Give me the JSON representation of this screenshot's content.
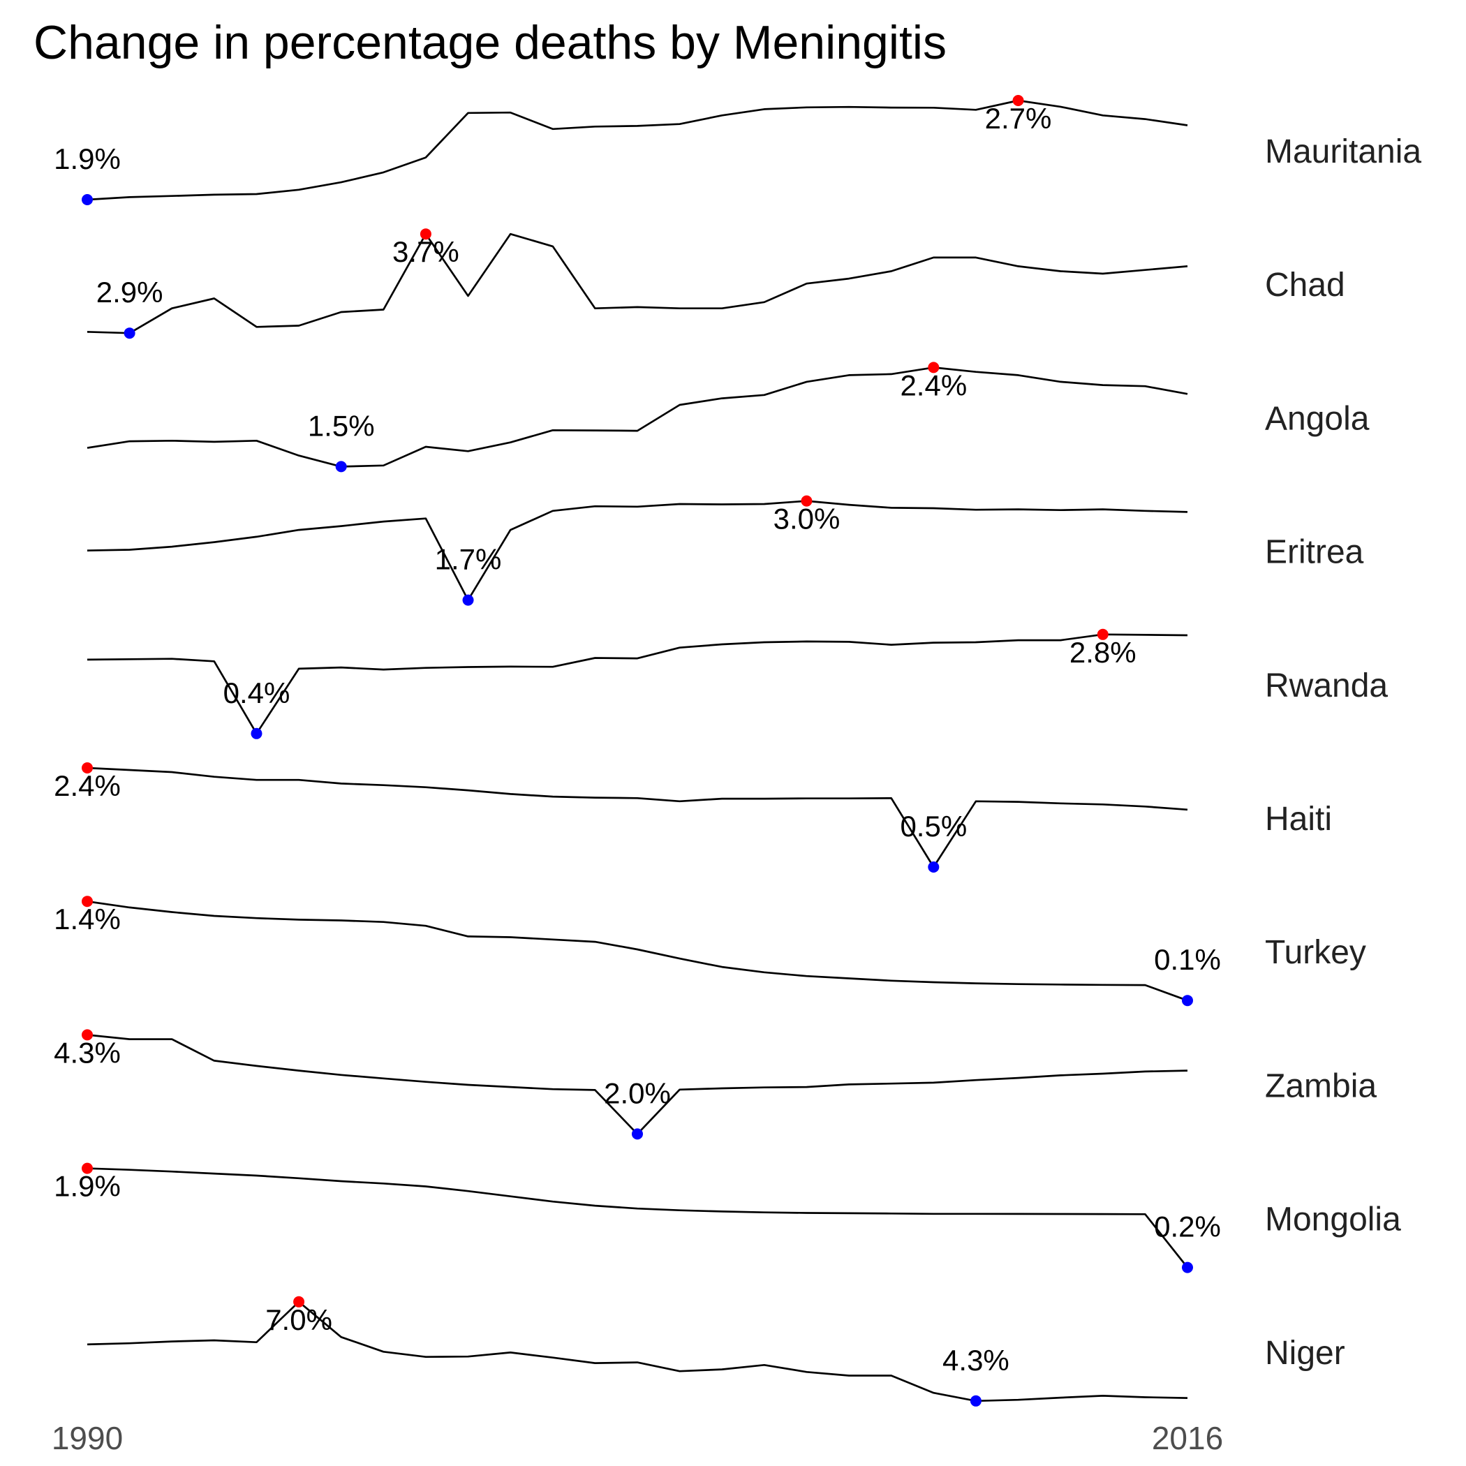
{
  "chart_data": {
    "type": "line",
    "title": "Change in percentage deaths by Meningitis",
    "x_start": 1990,
    "x_end": 2016,
    "x_labels": [
      "1990",
      "2016"
    ],
    "years": [
      1990,
      1991,
      1992,
      1993,
      1994,
      1995,
      1996,
      1997,
      1998,
      1999,
      2000,
      2001,
      2002,
      2003,
      2004,
      2005,
      2006,
      2007,
      2008,
      2009,
      2010,
      2011,
      2012,
      2013,
      2014,
      2015,
      2016
    ],
    "grid": false,
    "legend": "none",
    "max_marker_color": "#ff0000",
    "min_marker_color": "#0000ff",
    "line_color": "#000000",
    "series": [
      {
        "name": "Mauritania",
        "values": [
          1.9,
          1.92,
          1.93,
          1.94,
          1.945,
          1.98,
          2.04,
          2.12,
          2.24,
          2.6,
          2.603,
          2.47,
          2.49,
          2.495,
          2.51,
          2.58,
          2.63,
          2.645,
          2.648,
          2.643,
          2.642,
          2.625,
          2.7,
          2.65,
          2.58,
          2.55,
          2.5
        ],
        "max": {
          "index": 22,
          "label": "2.7%"
        },
        "min": {
          "index": 0,
          "label": "1.9%"
        }
      },
      {
        "name": "Chad",
        "values": [
          2.91,
          2.9,
          3.1,
          3.18,
          2.95,
          2.96,
          3.07,
          3.09,
          3.7,
          3.2,
          3.7,
          3.6,
          3.1,
          3.11,
          3.1,
          3.1,
          3.15,
          3.3,
          3.34,
          3.4,
          3.51,
          3.51,
          3.44,
          3.4,
          3.38,
          3.41,
          3.44
        ],
        "max": {
          "index": 8,
          "label": "3.7%"
        },
        "min": {
          "index": 1,
          "label": "2.9%"
        }
      },
      {
        "name": "Angola",
        "values": [
          1.67,
          1.73,
          1.735,
          1.725,
          1.735,
          1.6,
          1.5,
          1.51,
          1.68,
          1.64,
          1.72,
          1.83,
          1.828,
          1.825,
          2.06,
          2.12,
          2.15,
          2.27,
          2.33,
          2.34,
          2.4,
          2.36,
          2.33,
          2.27,
          2.24,
          2.23,
          2.16
        ],
        "max": {
          "index": 20,
          "label": "2.4%"
        },
        "min": {
          "index": 6,
          "label": "1.5%"
        }
      },
      {
        "name": "Eritrea",
        "values": [
          2.35,
          2.36,
          2.4,
          2.46,
          2.53,
          2.62,
          2.67,
          2.73,
          2.77,
          1.7,
          2.62,
          2.87,
          2.93,
          2.925,
          2.96,
          2.955,
          2.96,
          3.0,
          2.95,
          2.91,
          2.905,
          2.885,
          2.89,
          2.88,
          2.89,
          2.87,
          2.855
        ],
        "max": {
          "index": 17,
          "label": "3.0%"
        },
        "min": {
          "index": 9,
          "label": "1.7%"
        }
      },
      {
        "name": "Rwanda",
        "values": [
          2.19,
          2.2,
          2.21,
          2.15,
          0.4,
          1.97,
          2.0,
          1.95,
          1.99,
          2.01,
          2.02,
          2.015,
          2.23,
          2.22,
          2.48,
          2.56,
          2.61,
          2.63,
          2.62,
          2.55,
          2.6,
          2.61,
          2.66,
          2.66,
          2.8,
          2.79,
          2.78
        ],
        "max": {
          "index": 24,
          "label": "2.8%"
        },
        "min": {
          "index": 4,
          "label": "0.4%"
        }
      },
      {
        "name": "Haiti",
        "values": [
          2.4,
          2.36,
          2.32,
          2.23,
          2.17,
          2.17,
          2.1,
          2.07,
          2.03,
          1.97,
          1.9,
          1.85,
          1.83,
          1.82,
          1.76,
          1.81,
          1.81,
          1.815,
          1.815,
          1.82,
          0.5,
          1.76,
          1.75,
          1.72,
          1.7,
          1.66,
          1.6
        ],
        "max": {
          "index": 0,
          "label": "2.4%"
        },
        "min": {
          "index": 20,
          "label": "0.5%"
        }
      },
      {
        "name": "Turkey",
        "values": [
          1.4,
          1.32,
          1.26,
          1.21,
          1.18,
          1.16,
          1.15,
          1.13,
          1.08,
          0.94,
          0.93,
          0.9,
          0.87,
          0.77,
          0.65,
          0.54,
          0.47,
          0.42,
          0.39,
          0.36,
          0.34,
          0.325,
          0.315,
          0.31,
          0.305,
          0.302,
          0.1
        ],
        "max": {
          "index": 0,
          "label": "1.4%"
        },
        "min": {
          "index": 26,
          "label": "0.1%"
        }
      },
      {
        "name": "Zambia",
        "values": [
          4.3,
          4.2,
          4.2,
          3.7,
          3.58,
          3.47,
          3.37,
          3.29,
          3.21,
          3.14,
          3.09,
          3.04,
          3.02,
          2.0,
          3.03,
          3.06,
          3.08,
          3.09,
          3.15,
          3.17,
          3.19,
          3.25,
          3.3,
          3.36,
          3.4,
          3.45,
          3.47
        ],
        "max": {
          "index": 0,
          "label": "4.3%"
        },
        "min": {
          "index": 13,
          "label": "2.0%"
        }
      },
      {
        "name": "Mongolia",
        "values": [
          1.9,
          1.875,
          1.845,
          1.81,
          1.775,
          1.73,
          1.68,
          1.64,
          1.59,
          1.51,
          1.42,
          1.33,
          1.26,
          1.21,
          1.18,
          1.16,
          1.145,
          1.135,
          1.13,
          1.125,
          1.12,
          1.12,
          1.118,
          1.117,
          1.116,
          1.114,
          0.2
        ],
        "max": {
          "index": 0,
          "label": "1.9%"
        },
        "min": {
          "index": 26,
          "label": "0.2%"
        }
      },
      {
        "name": "Niger",
        "values": [
          5.84,
          5.87,
          5.92,
          5.95,
          5.9,
          7.0,
          6.04,
          5.64,
          5.5,
          5.51,
          5.62,
          5.48,
          5.33,
          5.35,
          5.11,
          5.16,
          5.28,
          5.09,
          4.99,
          4.99,
          4.52,
          4.3,
          4.33,
          4.39,
          4.44,
          4.4,
          4.38
        ],
        "max": {
          "index": 5,
          "label": "7.0%"
        },
        "min": {
          "index": 21,
          "label": "4.3%"
        }
      }
    ]
  }
}
